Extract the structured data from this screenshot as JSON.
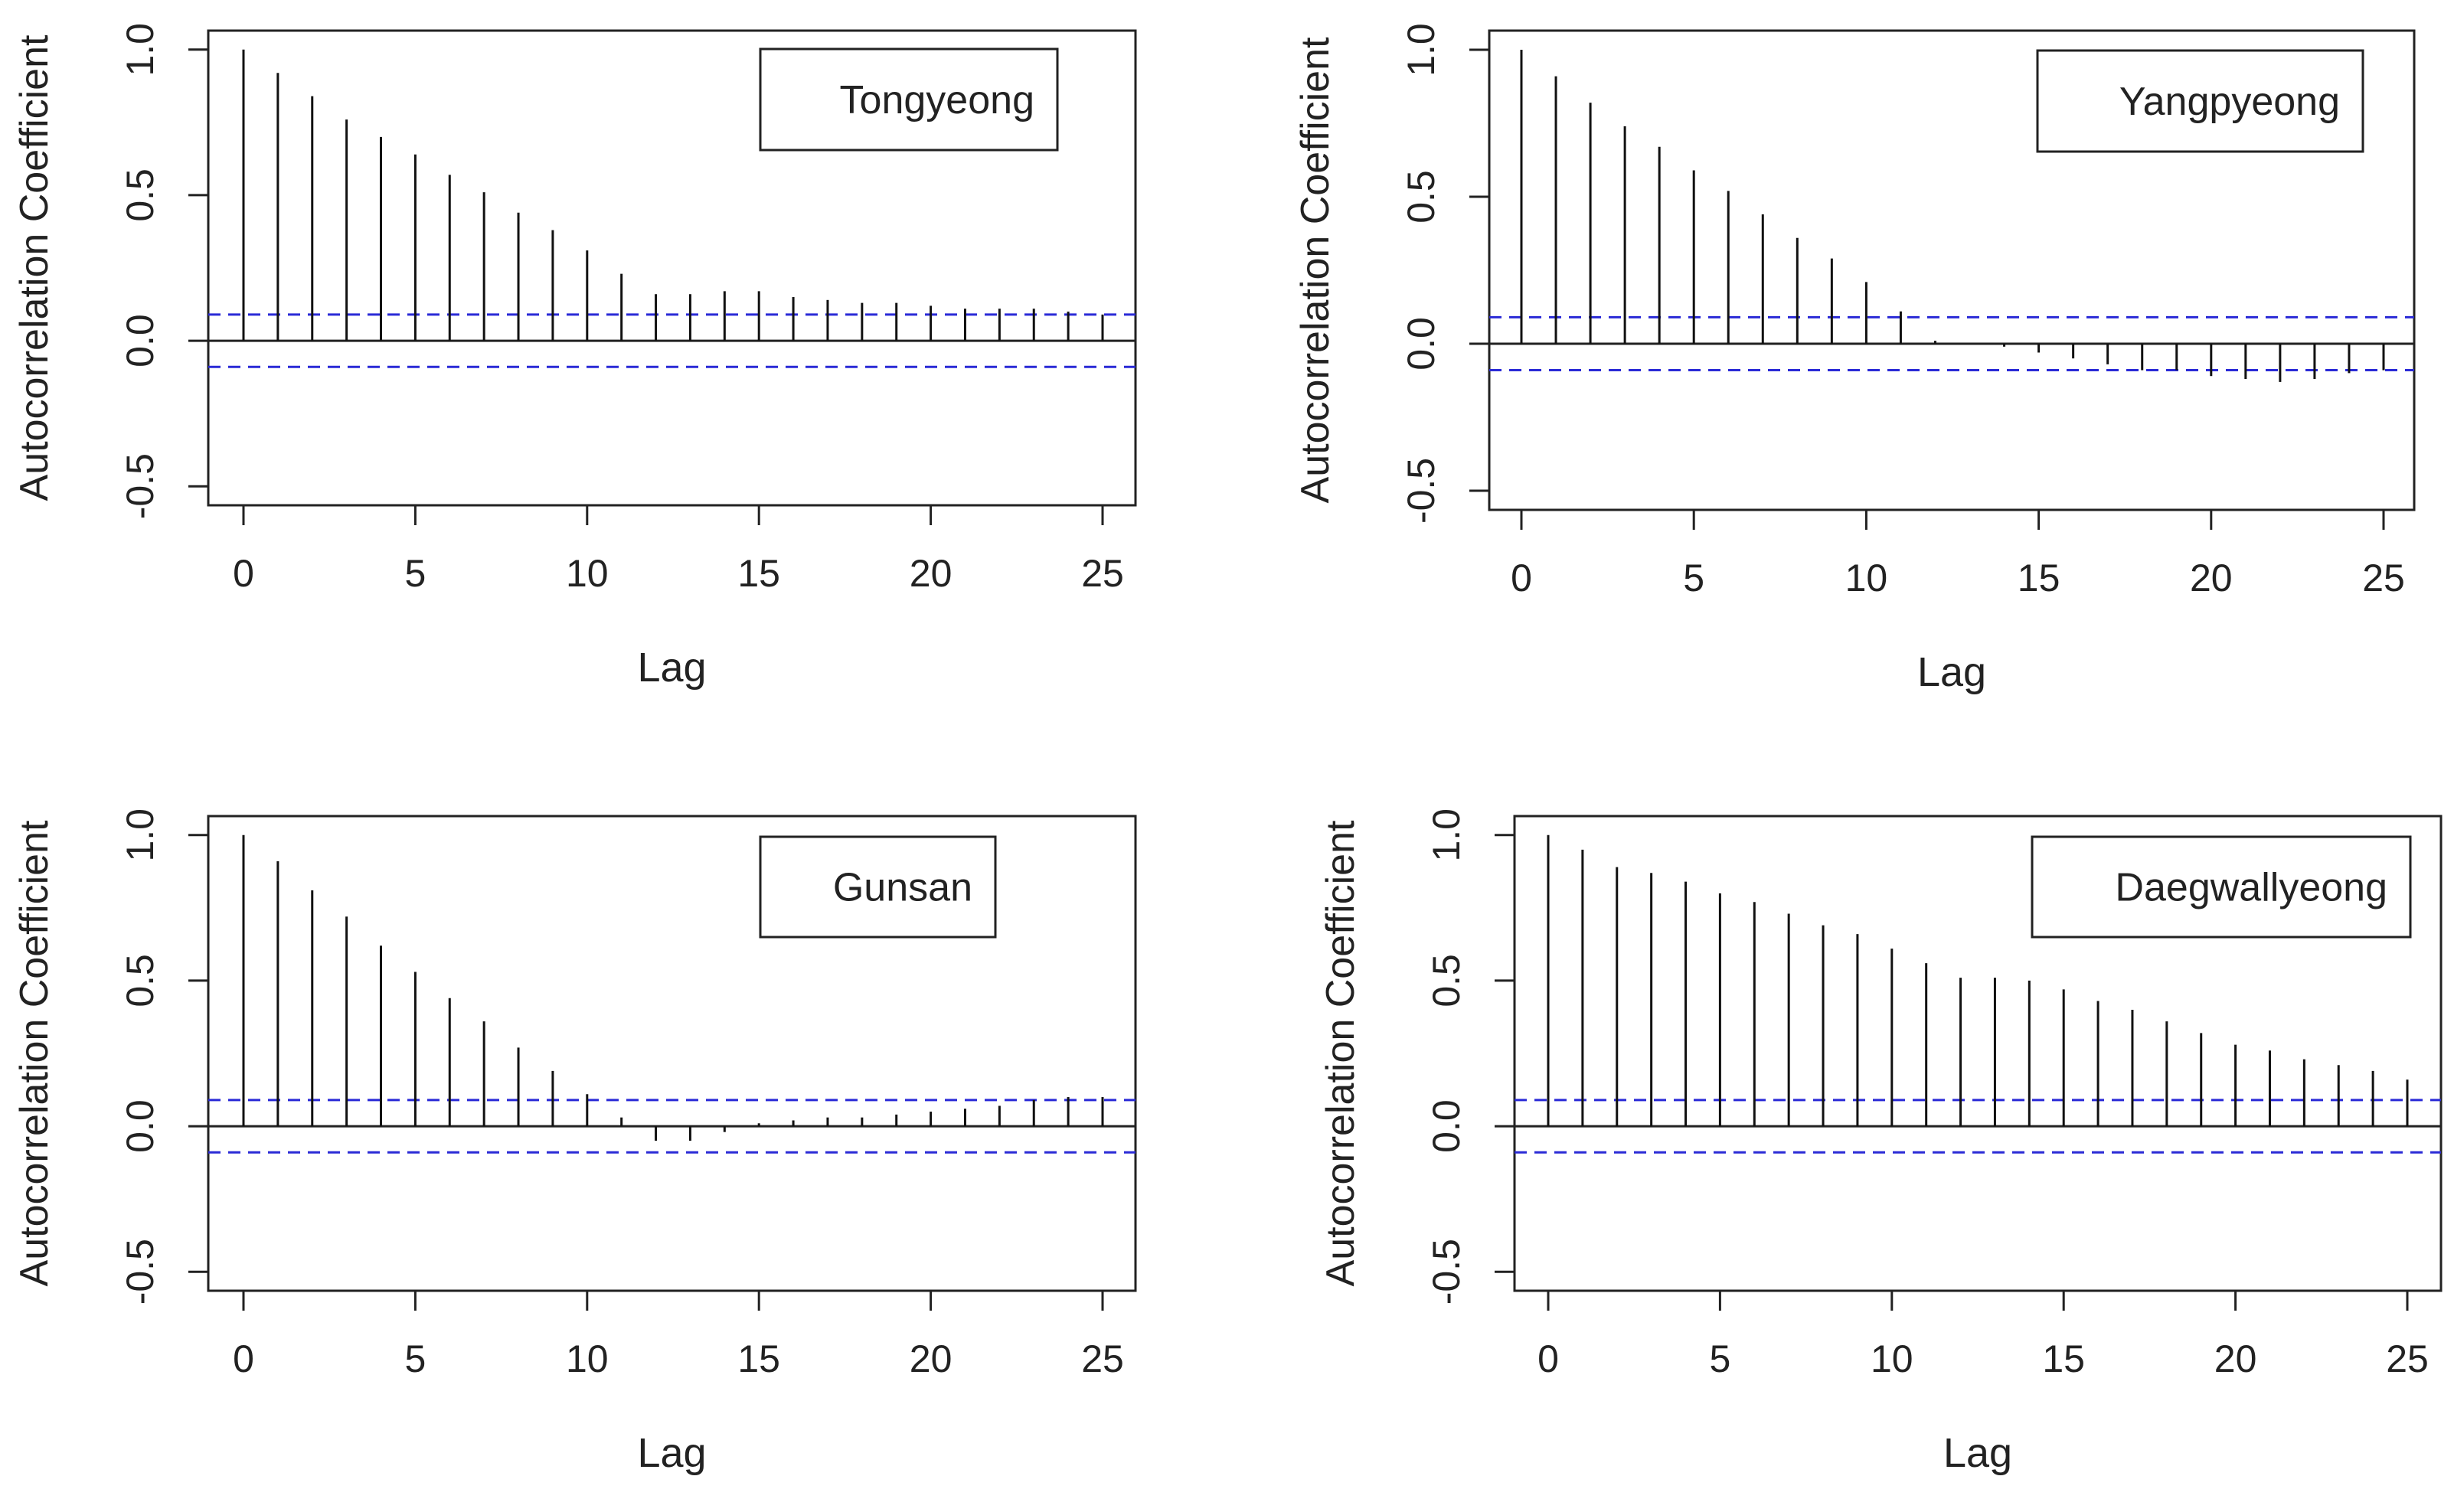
{
  "chart_data": [
    {
      "type": "bar",
      "legend": "Tongyeong",
      "xlabel": "Lag",
      "ylabel": "Autocorrelation Coefficient",
      "xlim": [
        0,
        25
      ],
      "ylim": [
        -0.5,
        1.0
      ],
      "xticks": [
        0,
        5,
        10,
        15,
        20,
        25
      ],
      "yticks": [
        -0.5,
        0.0,
        0.5,
        1.0
      ],
      "confidence_bound": 0.09,
      "x": [
        0,
        1,
        2,
        3,
        4,
        5,
        6,
        7,
        8,
        9,
        10,
        11,
        12,
        13,
        14,
        15,
        16,
        17,
        18,
        19,
        20,
        21,
        22,
        23,
        24,
        25
      ],
      "values": [
        1.0,
        0.92,
        0.84,
        0.76,
        0.7,
        0.64,
        0.57,
        0.51,
        0.44,
        0.38,
        0.31,
        0.23,
        0.16,
        0.16,
        0.17,
        0.17,
        0.15,
        0.14,
        0.13,
        0.13,
        0.12,
        0.11,
        0.11,
        0.11,
        0.1,
        0.09
      ]
    },
    {
      "type": "bar",
      "legend": "Yangpyeong",
      "xlabel": "Lag",
      "ylabel": "Autocorrelation Coefficient",
      "xlim": [
        0,
        25
      ],
      "ylim": [
        -0.5,
        1.0
      ],
      "xticks": [
        0,
        5,
        10,
        15,
        20,
        25
      ],
      "yticks": [
        -0.5,
        0.0,
        0.5,
        1.0
      ],
      "confidence_bound": 0.09,
      "x": [
        0,
        1,
        2,
        3,
        4,
        5,
        6,
        7,
        8,
        9,
        10,
        11,
        12,
        13,
        14,
        15,
        16,
        17,
        18,
        19,
        20,
        21,
        22,
        23,
        24,
        25
      ],
      "values": [
        1.0,
        0.91,
        0.82,
        0.74,
        0.67,
        0.59,
        0.52,
        0.44,
        0.36,
        0.29,
        0.21,
        0.11,
        0.01,
        0.0,
        -0.01,
        -0.03,
        -0.05,
        -0.07,
        -0.09,
        -0.09,
        -0.11,
        -0.12,
        -0.13,
        -0.12,
        -0.1,
        -0.09
      ]
    },
    {
      "type": "bar",
      "legend": "Gunsan",
      "xlabel": "Lag",
      "ylabel": "Autocorrelation Coefficient",
      "xlim": [
        0,
        25
      ],
      "ylim": [
        -0.5,
        1.0
      ],
      "xticks": [
        0,
        5,
        10,
        15,
        20,
        25
      ],
      "yticks": [
        -0.5,
        0.0,
        0.5,
        1.0
      ],
      "confidence_bound": 0.09,
      "x": [
        0,
        1,
        2,
        3,
        4,
        5,
        6,
        7,
        8,
        9,
        10,
        11,
        12,
        13,
        14,
        15,
        16,
        17,
        18,
        19,
        20,
        21,
        22,
        23,
        24,
        25
      ],
      "values": [
        1.0,
        0.91,
        0.81,
        0.72,
        0.62,
        0.53,
        0.44,
        0.36,
        0.27,
        0.19,
        0.11,
        0.03,
        -0.05,
        -0.05,
        -0.02,
        0.01,
        0.02,
        0.03,
        0.03,
        0.04,
        0.05,
        0.06,
        0.07,
        0.09,
        0.1,
        0.1
      ]
    },
    {
      "type": "bar",
      "legend": "Daegwallyeong",
      "xlabel": "Lag",
      "ylabel": "Autocorrelation Coefficient",
      "xlim": [
        0,
        25
      ],
      "ylim": [
        -0.5,
        1.0
      ],
      "xticks": [
        0,
        5,
        10,
        15,
        20,
        25
      ],
      "yticks": [
        -0.5,
        0.0,
        0.5,
        1.0
      ],
      "confidence_bound": 0.09,
      "x": [
        0,
        1,
        2,
        3,
        4,
        5,
        6,
        7,
        8,
        9,
        10,
        11,
        12,
        13,
        14,
        15,
        16,
        17,
        18,
        19,
        20,
        21,
        22,
        23,
        24,
        25
      ],
      "values": [
        1.0,
        0.95,
        0.89,
        0.87,
        0.84,
        0.8,
        0.77,
        0.73,
        0.69,
        0.66,
        0.61,
        0.56,
        0.51,
        0.51,
        0.5,
        0.47,
        0.43,
        0.4,
        0.36,
        0.32,
        0.28,
        0.26,
        0.23,
        0.21,
        0.19,
        0.16
      ]
    }
  ]
}
